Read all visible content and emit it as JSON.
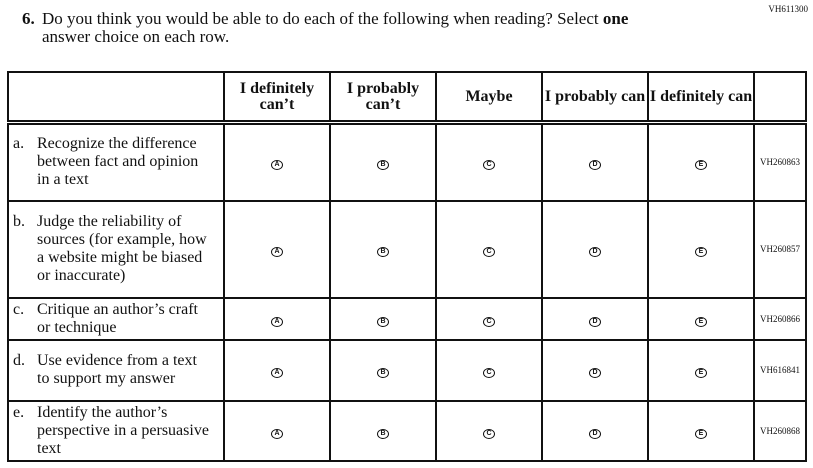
{
  "page_code": "VH611300",
  "question": {
    "number": "6.",
    "text_before": "Do you think you would be able to do each of the following when reading? Select ",
    "bold": "one",
    "text_after": "",
    "line2": "answer choice on each row."
  },
  "columns": [
    "I definitely can’t",
    "I probably can’t",
    "Maybe",
    "I probably can",
    "I definitely can"
  ],
  "choices": [
    "A",
    "B",
    "C",
    "D",
    "E"
  ],
  "rows": [
    {
      "letter": "a.",
      "text": "Recognize the difference between fact and opinion in a text",
      "code": "VH260863"
    },
    {
      "letter": "b.",
      "text": "Judge the reliability of sources (for example, how a website might be biased or inaccurate)",
      "code": "VH260857"
    },
    {
      "letter": "c.",
      "text": "Critique an author’s craft or technique",
      "code": "VH260866"
    },
    {
      "letter": "d.",
      "text": "Use evidence from a text to support my answer",
      "code": "VH616841"
    },
    {
      "letter": "e.",
      "text": "Identify the author’s perspective in a persuasive text",
      "code": "VH260868"
    }
  ]
}
